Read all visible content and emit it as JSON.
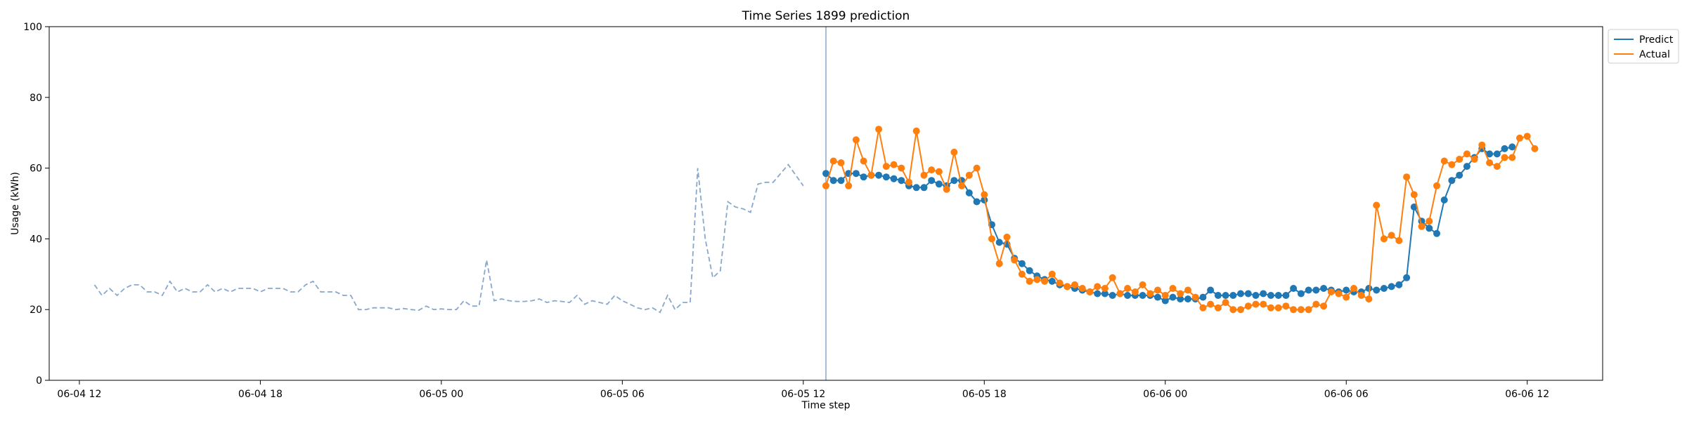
{
  "chart_data": {
    "type": "line",
    "title": "Time Series 1899 prediction",
    "xlabel": "Time step",
    "ylabel": "Usage (kWh)",
    "ylim": [
      0,
      100
    ],
    "y_ticks": [
      0,
      20,
      40,
      60,
      80,
      100
    ],
    "x_range": [
      "2024-06-04 11:00",
      "2024-06-06 14:30"
    ],
    "x_ticks": [
      {
        "label": "06-04 12",
        "value": "2024-06-04 12:00"
      },
      {
        "label": "06-04 18",
        "value": "2024-06-04 18:00"
      },
      {
        "label": "06-05 00",
        "value": "2024-06-05 00:00"
      },
      {
        "label": "06-05 06",
        "value": "2024-06-05 06:00"
      },
      {
        "label": "06-05 12",
        "value": "2024-06-05 12:00"
      },
      {
        "label": "06-05 18",
        "value": "2024-06-05 18:00"
      },
      {
        "label": "06-06 00",
        "value": "2024-06-06 00:00"
      },
      {
        "label": "06-06 06",
        "value": "2024-06-06 06:00"
      },
      {
        "label": "06-06 12",
        "value": "2024-06-06 12:00"
      }
    ],
    "grid": false,
    "legend_position": "outside-top-right",
    "vertical_marker": "2024-06-05 12:45",
    "colors": {
      "history": "#88a8cc",
      "predict": "#1f77b4",
      "actual": "#ff7f0e",
      "marker": "#88a8cc"
    },
    "history": {
      "start": "2024-06-04 12:30",
      "interval_minutes": 15,
      "values": [
        27,
        24,
        26,
        24,
        26,
        27,
        27,
        25,
        25,
        24,
        28,
        25,
        26,
        25,
        25,
        27,
        25,
        26,
        25,
        26,
        26,
        26,
        25,
        26,
        26,
        26,
        25,
        25,
        27,
        28,
        25,
        25,
        25,
        24,
        24,
        20,
        20,
        20.5,
        20.5,
        20.5,
        20,
        20.3,
        20,
        19.8,
        21,
        20,
        20.2,
        20,
        20,
        22.5,
        21,
        21,
        34,
        22.5,
        23,
        22.5,
        22.3,
        22.3,
        22.5,
        23,
        22,
        22.5,
        22.3,
        22,
        24,
        21.5,
        22.5,
        22,
        21.5,
        24,
        22.5,
        21.5,
        20.5,
        20,
        20.5,
        19.2,
        24,
        20,
        22,
        22,
        60,
        40,
        29,
        31,
        50.5,
        49,
        48.5,
        47.5,
        55.5,
        56,
        56,
        58.5,
        61,
        58,
        55
      ]
    },
    "series": [
      {
        "name": "Predict",
        "start": "2024-06-05 12:45",
        "interval_minutes": 15,
        "values": [
          58.5,
          56.5,
          56.5,
          58.5,
          58.5,
          57.5,
          58,
          58,
          57.5,
          57,
          56.5,
          55,
          54.5,
          54.5,
          56.5,
          55.5,
          55,
          56.5,
          56.5,
          53,
          50.5,
          51,
          44,
          39,
          38.5,
          34.5,
          33,
          31,
          29.5,
          28.5,
          28,
          27,
          26.5,
          26,
          25.5,
          25,
          24.5,
          24.5,
          24,
          24.5,
          24,
          24,
          24,
          24,
          23.5,
          22.5,
          23.5,
          23,
          23,
          23,
          23.5,
          25.5,
          24,
          24,
          24,
          24.5,
          24.5,
          24,
          24.5,
          24,
          24,
          24,
          26,
          24.5,
          25.5,
          25.5,
          26,
          25.5,
          25,
          25.5,
          25,
          25,
          26,
          25.5,
          26,
          26.5,
          27,
          29,
          49,
          45,
          43,
          41.5,
          51,
          56.5,
          58,
          60.5,
          63,
          65.5,
          64,
          64,
          65.5,
          66
        ]
      },
      {
        "name": "Actual",
        "start": "2024-06-05 12:45",
        "interval_minutes": 15,
        "values": [
          55,
          62,
          61.5,
          55,
          68,
          62,
          58,
          71,
          60.5,
          61,
          60,
          56,
          70.5,
          58,
          59.5,
          59,
          54,
          64.5,
          55,
          58,
          60,
          52.5,
          40,
          33,
          40.5,
          34,
          30,
          28,
          28.5,
          28,
          30,
          27.5,
          26.5,
          27,
          26,
          25,
          26.5,
          26,
          29,
          24.5,
          26,
          25,
          27,
          24.5,
          25.5,
          24,
          26,
          24.5,
          25.5,
          23.5,
          20.5,
          21.5,
          20.5,
          22,
          20,
          20,
          21,
          21.5,
          21.5,
          20.5,
          20.5,
          21,
          20,
          20,
          20,
          21.5,
          21,
          25,
          24.5,
          23.5,
          26,
          24,
          23,
          49.5,
          40,
          41,
          39.5,
          57.5,
          52.5,
          43.5,
          45,
          55,
          62,
          61,
          62.5,
          64,
          62.5,
          66.5,
          61.5,
          60.5,
          63,
          63,
          68.5,
          69,
          65.5
        ]
      }
    ]
  }
}
